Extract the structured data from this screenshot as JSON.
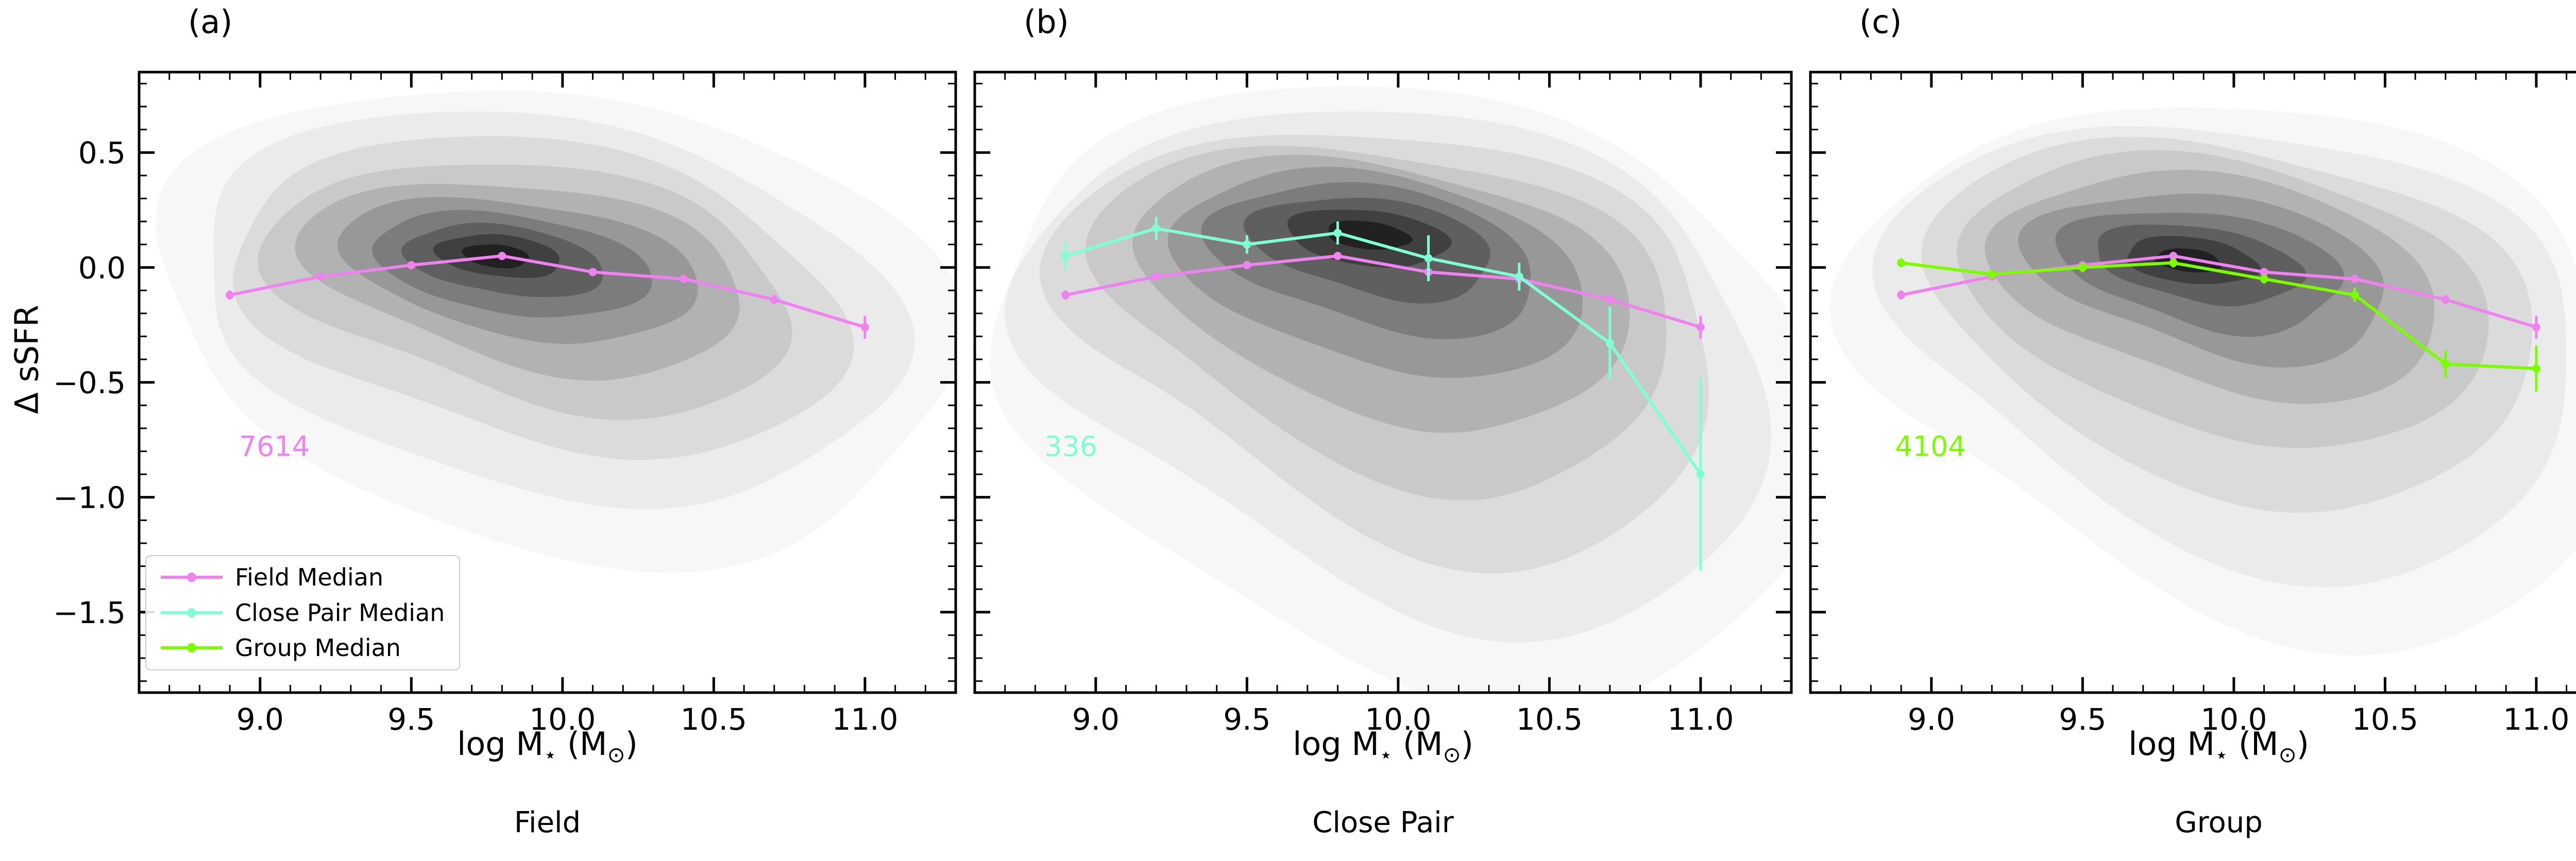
{
  "figure": {
    "background": "#ffffff",
    "ylabel": "Δ sSFR",
    "xlabel_parts": {
      "p1": "log M",
      "s1": "⋆",
      "p2": " (M",
      "s2": "⊙",
      "p3": ")"
    }
  },
  "axes": {
    "x_range": [
      8.6,
      11.3
    ],
    "y_range": [
      -1.85,
      0.85
    ],
    "x_ticks": [
      9.0,
      9.5,
      10.0,
      10.5,
      11.0
    ],
    "x_tick_labels": [
      "9.0",
      "9.5",
      "10.0",
      "10.5",
      "11.0"
    ],
    "y_ticks": [
      0.5,
      0.0,
      -0.5,
      -1.0,
      -1.5
    ],
    "y_tick_labels": [
      "0.5",
      "0.0",
      "−0.5",
      "−1.0",
      "−1.5"
    ],
    "minor_tick_step": 0.1,
    "tick_direction": "in"
  },
  "legend": {
    "items": [
      {
        "label": "Field Median",
        "color": "#ee82ee"
      },
      {
        "label": "Close Pair Median",
        "color": "#7fffd4"
      },
      {
        "label": "Group Median",
        "color": "#7cfc00"
      }
    ]
  },
  "chart_data": {
    "type": "contour",
    "description": "Filled grayscale KDE density contours of Delta sSFR vs stellar mass for three environments, with binned median relations overlaid",
    "xlabel": "log M⋆ (M⊙)",
    "ylabel": "Δ sSFR",
    "x_range": [
      8.6,
      11.3
    ],
    "y_range": [
      -1.85,
      0.85
    ],
    "x_bins": [
      8.9,
      9.2,
      9.5,
      9.8,
      10.1,
      10.4,
      10.7,
      11.0
    ],
    "series": [
      {
        "name": "Field Median",
        "color": "#ee82ee",
        "y": [
          -0.12,
          -0.04,
          0.01,
          0.05,
          -0.02,
          -0.05,
          -0.14,
          -0.26
        ],
        "yerr": [
          0.02,
          0.01,
          0.01,
          0.01,
          0.01,
          0.01,
          0.02,
          0.05
        ]
      },
      {
        "name": "Close Pair Median",
        "color": "#7fffd4",
        "y": [
          0.05,
          0.17,
          0.1,
          0.15,
          0.04,
          -0.04,
          -0.33,
          -0.9
        ],
        "yerr": [
          0.06,
          0.05,
          0.04,
          0.05,
          0.1,
          0.06,
          0.16,
          0.42
        ]
      },
      {
        "name": "Group Median",
        "color": "#7cfc00",
        "y": [
          0.02,
          -0.03,
          0.0,
          0.02,
          -0.05,
          -0.12,
          -0.42,
          -0.44
        ],
        "yerr": [
          0.02,
          0.02,
          0.02,
          0.02,
          0.02,
          0.03,
          0.06,
          0.1
        ]
      }
    ],
    "contour_fills": [
      "#f7f7f7",
      "#ebebeb",
      "#dbdbdb",
      "#c9c9c9",
      "#b2b2b2",
      "#989898",
      "#7c7c7c",
      "#5f5f5f",
      "#404040",
      "#212121"
    ],
    "panels": [
      {
        "id": "a",
        "letter": "(a)",
        "caption": "Field",
        "count": "7614",
        "count_color": "#ee82ee",
        "count_pos": [
          8.93,
          -0.78
        ],
        "series": [
          "Field Median"
        ],
        "contour_levels": [
          [
            9.95,
            -0.15,
            1.32,
            0.92,
            -12,
            0.1,
            -0.22
          ],
          [
            9.92,
            -0.1,
            1.16,
            0.75,
            -12,
            0.09,
            -0.19
          ],
          [
            9.9,
            -0.06,
            1.01,
            0.6,
            -12,
            0.08,
            -0.16
          ],
          [
            9.88,
            -0.03,
            0.87,
            0.47,
            -11,
            0.07,
            -0.13
          ],
          [
            9.86,
            0.0,
            0.73,
            0.36,
            -10,
            0.06,
            -0.1
          ],
          [
            9.84,
            0.02,
            0.59,
            0.27,
            -9,
            0.05,
            -0.07
          ],
          [
            9.82,
            0.03,
            0.46,
            0.2,
            -8,
            0.03,
            -0.05
          ],
          [
            9.8,
            0.04,
            0.33,
            0.14,
            -8,
            0.02,
            -0.03
          ],
          [
            9.79,
            0.05,
            0.21,
            0.09,
            -8,
            0,
            0
          ],
          [
            9.78,
            0.05,
            0.11,
            0.05,
            -8,
            0,
            0
          ]
        ]
      },
      {
        "id": "b",
        "letter": "(b)",
        "caption": "Close Pair",
        "count": "336",
        "count_color": "#7fffd4",
        "count_pos": [
          8.83,
          -0.78
        ],
        "series": [
          "Field Median",
          "Close Pair Median"
        ],
        "contour_levels": [
          [
            10.0,
            -0.3,
            1.38,
            1.05,
            -14,
            0.18,
            -0.6
          ],
          [
            9.97,
            -0.22,
            1.24,
            0.88,
            -14,
            0.16,
            -0.5
          ],
          [
            9.95,
            -0.14,
            1.1,
            0.72,
            -13,
            0.14,
            -0.42
          ],
          [
            9.93,
            -0.07,
            0.96,
            0.58,
            -12,
            0.12,
            -0.33
          ],
          [
            9.92,
            -0.01,
            0.82,
            0.46,
            -11,
            0.1,
            -0.25
          ],
          [
            9.91,
            0.04,
            0.68,
            0.36,
            -10,
            0.08,
            -0.17
          ],
          [
            9.9,
            0.08,
            0.54,
            0.27,
            -10,
            0.06,
            -0.11
          ],
          [
            9.9,
            0.11,
            0.4,
            0.19,
            -9,
            0.04,
            -0.06
          ],
          [
            9.9,
            0.13,
            0.27,
            0.12,
            -9,
            0,
            0
          ],
          [
            9.9,
            0.14,
            0.14,
            0.06,
            -9,
            0,
            0
          ]
        ]
      },
      {
        "id": "c",
        "letter": "(c)",
        "caption": "Group",
        "count": "4104",
        "count_color": "#7cfc00",
        "count_pos": [
          8.88,
          -0.78
        ],
        "series": [
          "Field Median",
          "Group Median"
        ],
        "contour_levels": [
          [
            10.0,
            -0.25,
            1.28,
            0.95,
            -13,
            0.15,
            -0.45
          ],
          [
            9.98,
            -0.18,
            1.15,
            0.79,
            -13,
            0.13,
            -0.38
          ],
          [
            9.96,
            -0.11,
            1.01,
            0.64,
            -12,
            0.11,
            -0.31
          ],
          [
            9.94,
            -0.05,
            0.88,
            0.51,
            -11,
            0.09,
            -0.24
          ],
          [
            9.92,
            -0.01,
            0.74,
            0.4,
            -10,
            0.08,
            -0.18
          ],
          [
            9.9,
            0.01,
            0.6,
            0.3,
            -10,
            0.06,
            -0.12
          ],
          [
            9.88,
            0.02,
            0.47,
            0.22,
            -9,
            0.04,
            -0.08
          ],
          [
            9.87,
            0.03,
            0.34,
            0.15,
            -9,
            0.03,
            -0.04
          ],
          [
            9.86,
            0.03,
            0.22,
            0.1,
            -9,
            0,
            0
          ],
          [
            9.85,
            0.03,
            0.11,
            0.05,
            -9,
            0,
            0
          ]
        ]
      }
    ]
  }
}
